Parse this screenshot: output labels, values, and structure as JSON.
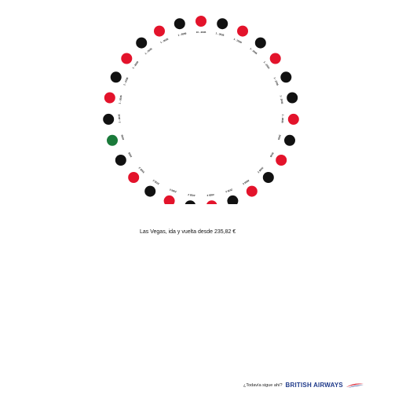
{
  "headline": "Las Vegas, ida y vuelta desde 235,82 €",
  "tagline": "¿Todavía sigue ahí?",
  "brand_name": "BRITISH AIRWAYS",
  "colors": {
    "red": "#e3132b",
    "black": "#111111",
    "green": "#1a7a3a",
    "brand_blue": "#1f3a8a",
    "brand_red": "#d7192a"
  },
  "roulette_pockets": [
    {
      "color": "red",
      "label": "10 - 2035"
    },
    {
      "color": "black",
      "label": "1 - 2035"
    },
    {
      "color": "red",
      "label": "1 - 2035"
    },
    {
      "color": "black",
      "label": "1 - 2035"
    },
    {
      "color": "red",
      "label": "1 - 2035"
    },
    {
      "color": "black",
      "label": "1 - 2035"
    },
    {
      "color": "black",
      "label": "1 - 2035"
    },
    {
      "color": "red",
      "label": "1 - 2035"
    },
    {
      "color": "black",
      "label": "2035"
    },
    {
      "color": "red",
      "label": "2035"
    },
    {
      "color": "black",
      "label": "2035 2"
    },
    {
      "color": "red",
      "label": "2035 2"
    },
    {
      "color": "black",
      "label": "2035 2"
    },
    {
      "color": "red",
      "label": "2035 2"
    },
    {
      "color": "black",
      "label": "2035 2"
    },
    {
      "color": "red",
      "label": "2035 2"
    },
    {
      "color": "black",
      "label": "2035 2"
    },
    {
      "color": "red",
      "label": "2035 2"
    },
    {
      "color": "black",
      "label": "2035"
    },
    {
      "color": "green",
      "label": "2035"
    },
    {
      "color": "black",
      "label": "1 - 2035"
    },
    {
      "color": "red",
      "label": "1 - 2035"
    },
    {
      "color": "black",
      "label": "1 - 2035"
    },
    {
      "color": "red",
      "label": "1 - 2035"
    },
    {
      "color": "black",
      "label": "1 - 2035"
    },
    {
      "color": "red",
      "label": "1 - 2035"
    },
    {
      "color": "black",
      "label": "1 - 2035"
    }
  ]
}
